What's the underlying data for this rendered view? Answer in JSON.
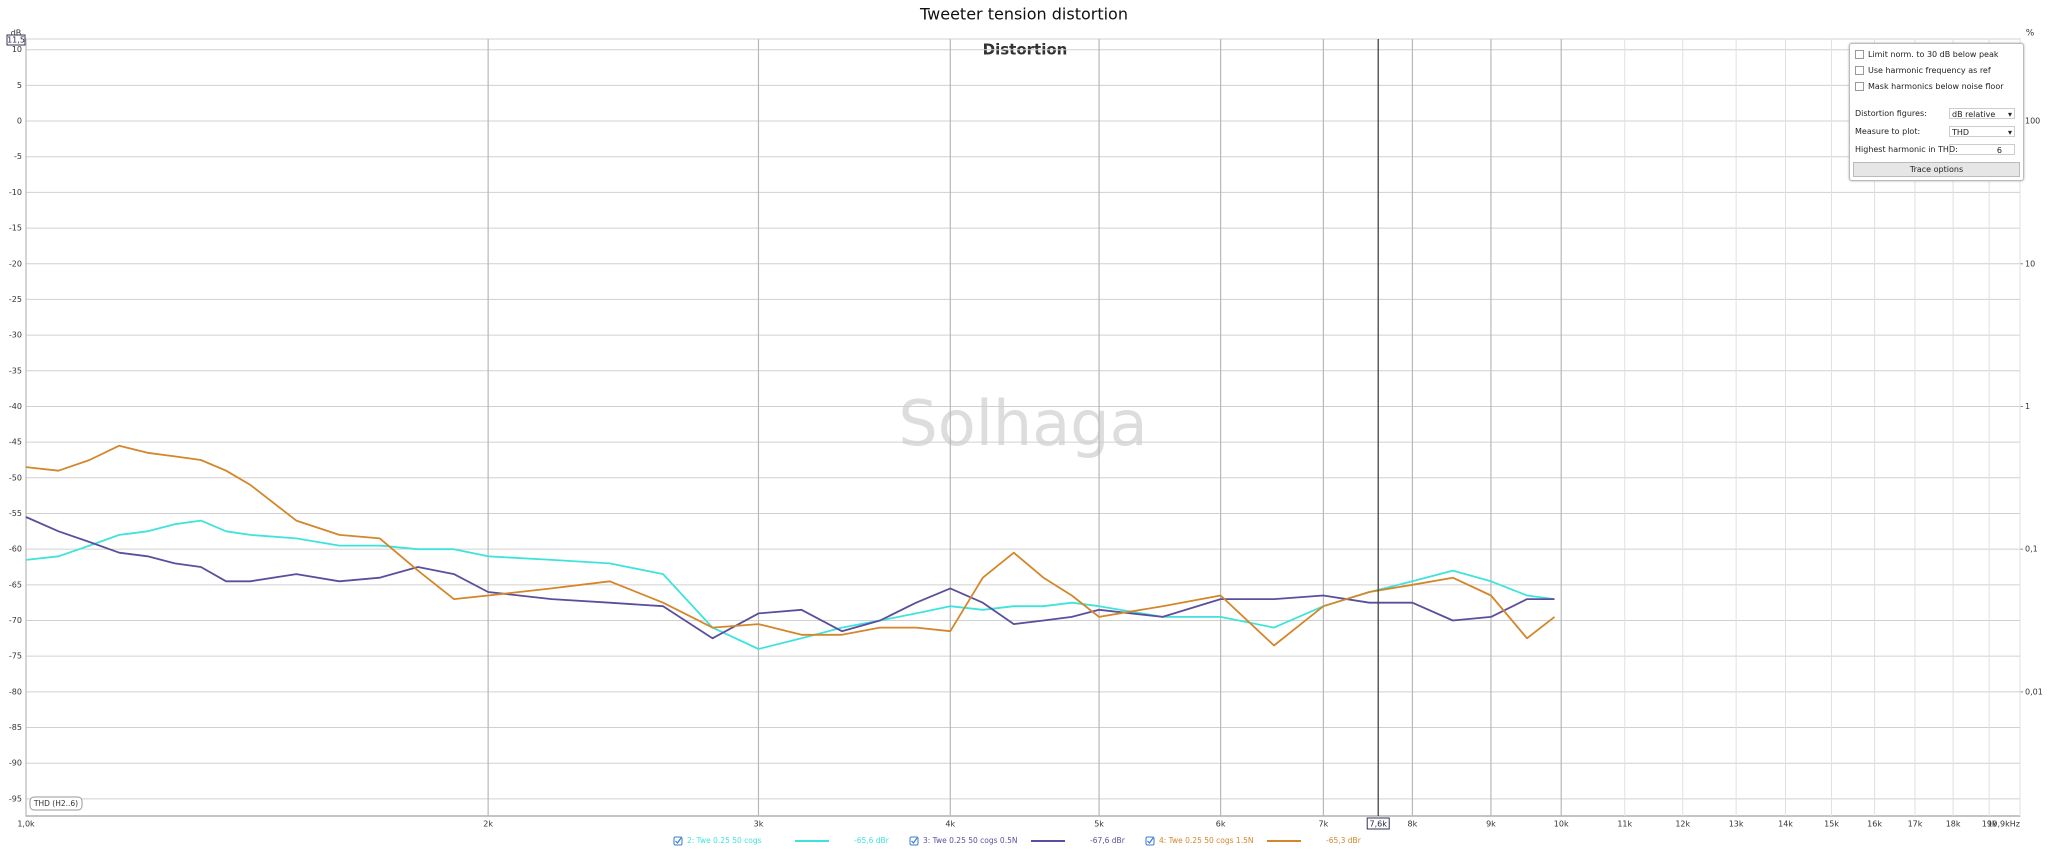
{
  "chart_data": {
    "type": "line",
    "title": "Tweeter tension distortion",
    "subtitle": "Distortion",
    "y_label": "dB",
    "y2_label": "%",
    "x_log": true,
    "y2_log": true,
    "grid": true,
    "xlim": [
      1000,
      19900
    ],
    "xticks": [
      {
        "value": 1000,
        "label": "1,0k"
      },
      {
        "value": 2000,
        "label": "2k"
      },
      {
        "value": 3000,
        "label": "3k"
      },
      {
        "value": 4000,
        "label": "4k"
      },
      {
        "value": 5000,
        "label": "5k"
      },
      {
        "value": 6000,
        "label": "6k"
      },
      {
        "value": 7000,
        "label": "7k"
      },
      {
        "value": 8000,
        "label": "8k"
      },
      {
        "value": 9000,
        "label": "9k"
      },
      {
        "value": 10000,
        "label": "10k"
      },
      {
        "value": 11000,
        "label": "11k"
      },
      {
        "value": 12000,
        "label": "12k"
      },
      {
        "value": 13000,
        "label": "13k"
      },
      {
        "value": 14000,
        "label": "14k"
      },
      {
        "value": 15000,
        "label": "15k"
      },
      {
        "value": 16000,
        "label": "16k"
      },
      {
        "value": 17000,
        "label": "17k"
      },
      {
        "value": 18000,
        "label": "18k"
      },
      {
        "value": 19000,
        "label": "19k"
      },
      {
        "value": 19900,
        "label": "19,9kHz"
      }
    ],
    "ylim": [
      -97.4,
      11.5
    ],
    "yticks": [
      {
        "value": 11.5,
        "label": "11,5"
      },
      10,
      5,
      0,
      -5,
      -10,
      -15,
      -20,
      -25,
      -30,
      -35,
      -40,
      -45,
      -50,
      -55,
      -60,
      -65,
      -70,
      -75,
      -80,
      -85,
      -90,
      -95
    ],
    "y2lim": [
      0.00135,
      376
    ],
    "y2ticks": [
      100,
      10,
      1,
      {
        "value": 0.1,
        "label": "0,1"
      },
      {
        "value": 0.01,
        "label": "0,01"
      }
    ],
    "cursor": {
      "value": 7600,
      "label": "7,6k"
    },
    "watermark": "Solhaga",
    "annotation": "THD (H2..6)",
    "x": [
      1000,
      1050,
      1100,
      1150,
      1200,
      1250,
      1300,
      1350,
      1400,
      1500,
      1600,
      1700,
      1800,
      1900,
      2000,
      2200,
      2400,
      2600,
      2800,
      3000,
      3200,
      3400,
      3600,
      3800,
      4000,
      4200,
      4400,
      4600,
      4800,
      5000,
      5500,
      6000,
      6500,
      7000,
      7500,
      8000,
      8500,
      9000,
      9500,
      9900
    ],
    "series": [
      {
        "name": "2: Twe 0.25 50 cogs",
        "color": "#3fe3dc",
        "cursor_reading": "-65,6 dBr",
        "values": [
          -61.5,
          -61,
          -59.5,
          -58,
          -57.5,
          -56.5,
          -56,
          -57.5,
          -58,
          -58.5,
          -59.5,
          -59.5,
          -60,
          -60,
          -61,
          -61.5,
          -62,
          -63.5,
          -71,
          -74,
          -72.5,
          -71,
          -70,
          -69,
          -68,
          -68.5,
          -68,
          -68,
          -67.5,
          -68,
          -69.5,
          -69.5,
          -71,
          -68,
          -66,
          -64.5,
          -63,
          -64.5,
          -66.5,
          -67
        ]
      },
      {
        "name": "3: Twe 0.25 50 cogs 0.5N",
        "color": "#5a4f9e",
        "cursor_reading": "-67,6 dBr",
        "values": [
          -55.5,
          -57.5,
          -59,
          -60.5,
          -61,
          -62,
          -62.5,
          -64.5,
          -64.5,
          -63.5,
          -64.5,
          -64,
          -62.5,
          -63.5,
          -66,
          -67,
          -67.5,
          -68,
          -72.5,
          -69,
          -68.5,
          -71.5,
          -70,
          -67.5,
          -65.5,
          -67.5,
          -70.5,
          -70,
          -69.5,
          -68.5,
          -69.5,
          -67,
          -67,
          -66.5,
          -67.5,
          -67.5,
          -70,
          -69.5,
          -67,
          -67
        ]
      },
      {
        "name": "4: Twe 0.25 50 cogs 1.5N",
        "color": "#d4862a",
        "cursor_reading": "-65,3 dBr",
        "values": [
          -48.5,
          -49,
          -47.5,
          -45.5,
          -46.5,
          -47,
          -47.5,
          -49,
          -51,
          -56,
          -58,
          -58.5,
          -63,
          -67,
          -66.5,
          -65.5,
          -64.5,
          -67.5,
          -71,
          -70.5,
          -72,
          -72,
          -71,
          -71,
          -71.5,
          -64,
          -60.5,
          -64,
          -66.5,
          -69.5,
          -68,
          -66.5,
          -73.5,
          -68,
          -66,
          -65,
          -64,
          -66.5,
          -72.5,
          -69.5
        ]
      }
    ]
  },
  "panel": {
    "limit_norm": "Limit norm. to 30 dB below peak",
    "harmonic_ref": "Use harmonic frequency as ref",
    "mask_harmonics": "Mask harmonics below noise floor",
    "distortion_figures_label": "Distortion figures:",
    "distortion_figures": "dB relative",
    "measure_label": "Measure to plot:",
    "measure": "THD",
    "highest_harmonic_label": "Highest harmonic in THD:",
    "highest_harmonic": "6",
    "trace_options": "Trace options"
  }
}
